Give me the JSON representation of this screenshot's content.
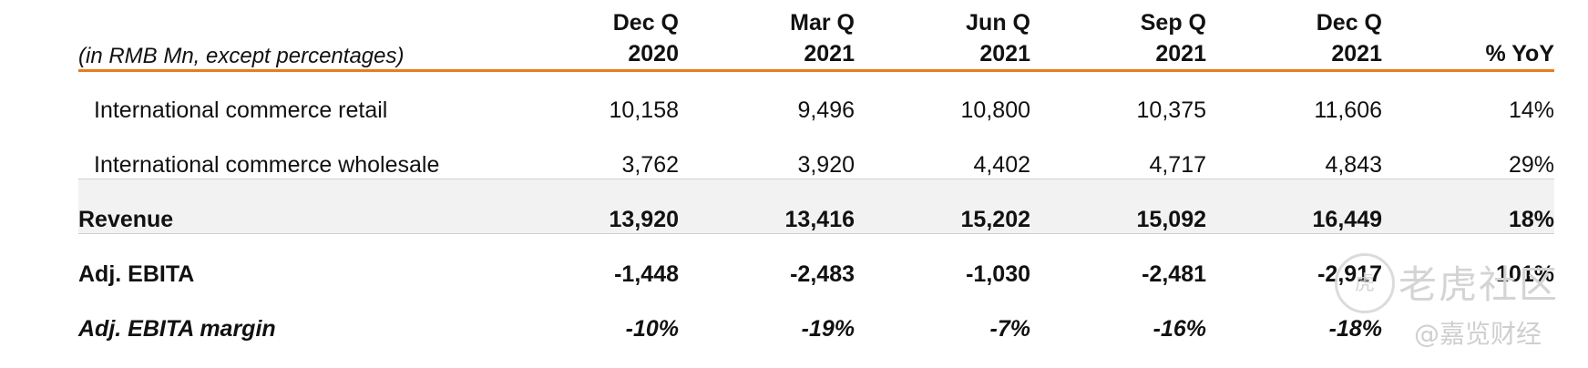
{
  "header": {
    "note": "(in RMB Mn, except percentages)",
    "columns": [
      {
        "line1": "Dec Q",
        "line2": "2020"
      },
      {
        "line1": "Mar Q",
        "line2": "2021"
      },
      {
        "line1": "Jun Q",
        "line2": "2021"
      },
      {
        "line1": "Sep Q",
        "line2": "2021"
      },
      {
        "line1": "Dec Q",
        "line2": "2021"
      },
      {
        "line1": "",
        "line2": "% YoY"
      }
    ]
  },
  "rows": [
    {
      "label": "International commerce retail",
      "values": [
        "10,158",
        "9,496",
        "10,800",
        "10,375",
        "11,606",
        "14%"
      ]
    },
    {
      "label": "International commerce wholesale",
      "values": [
        "3,762",
        "3,920",
        "4,402",
        "4,717",
        "4,843",
        "29%"
      ]
    },
    {
      "label": "Revenue",
      "values": [
        "13,920",
        "13,416",
        "15,202",
        "15,092",
        "16,449",
        "18%"
      ]
    },
    {
      "label": "Adj. EBITA",
      "values": [
        "-1,448",
        "-2,483",
        "-1,030",
        "-2,481",
        "-2,917",
        "101%"
      ]
    },
    {
      "label": "Adj. EBITA margin",
      "values": [
        "-10%",
        "-19%",
        "-7%",
        "-16%",
        "-18%",
        ""
      ]
    }
  ],
  "watermark": {
    "logo_char": "虎",
    "line1": "老虎社区",
    "line2": "@嘉览财经"
  },
  "colors": {
    "accent_rule": "#e87d1e",
    "shade": "#f2f2f2"
  }
}
